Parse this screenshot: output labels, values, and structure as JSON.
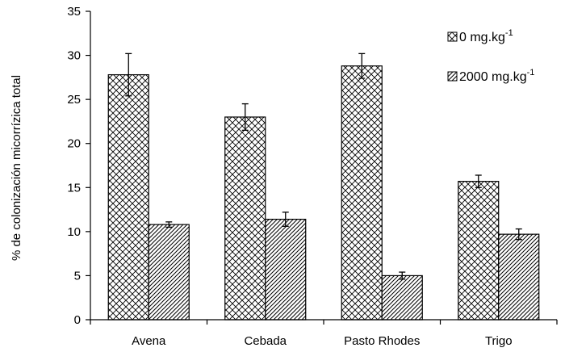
{
  "chart_data": {
    "type": "bar",
    "categories": [
      "Avena",
      "Cebada",
      "Pasto Rhodes",
      "Trigo"
    ],
    "series": [
      {
        "name": "0 mg.kg",
        "name_sup": "-1",
        "values": [
          27.8,
          23.0,
          28.8,
          15.7
        ],
        "errors": [
          2.4,
          1.5,
          1.4,
          0.7
        ],
        "pattern": "crosshatch"
      },
      {
        "name": "2000 mg.kg",
        "name_sup": "-1",
        "values": [
          10.8,
          11.4,
          5.0,
          9.7
        ],
        "errors": [
          0.3,
          0.8,
          0.4,
          0.6
        ],
        "pattern": "diagonal"
      }
    ],
    "title": "",
    "xlabel": "",
    "ylabel": "% de colonización micorrízica total",
    "ylim": [
      0,
      35
    ],
    "yticks": [
      "0",
      "5",
      "10",
      "15",
      "20",
      "25",
      "30",
      "35"
    ],
    "grid": false,
    "legend_position": "top-right",
    "colors": {
      "bar_stroke": "#000000",
      "pattern_ink": "#000000",
      "background": "#ffffff"
    }
  }
}
